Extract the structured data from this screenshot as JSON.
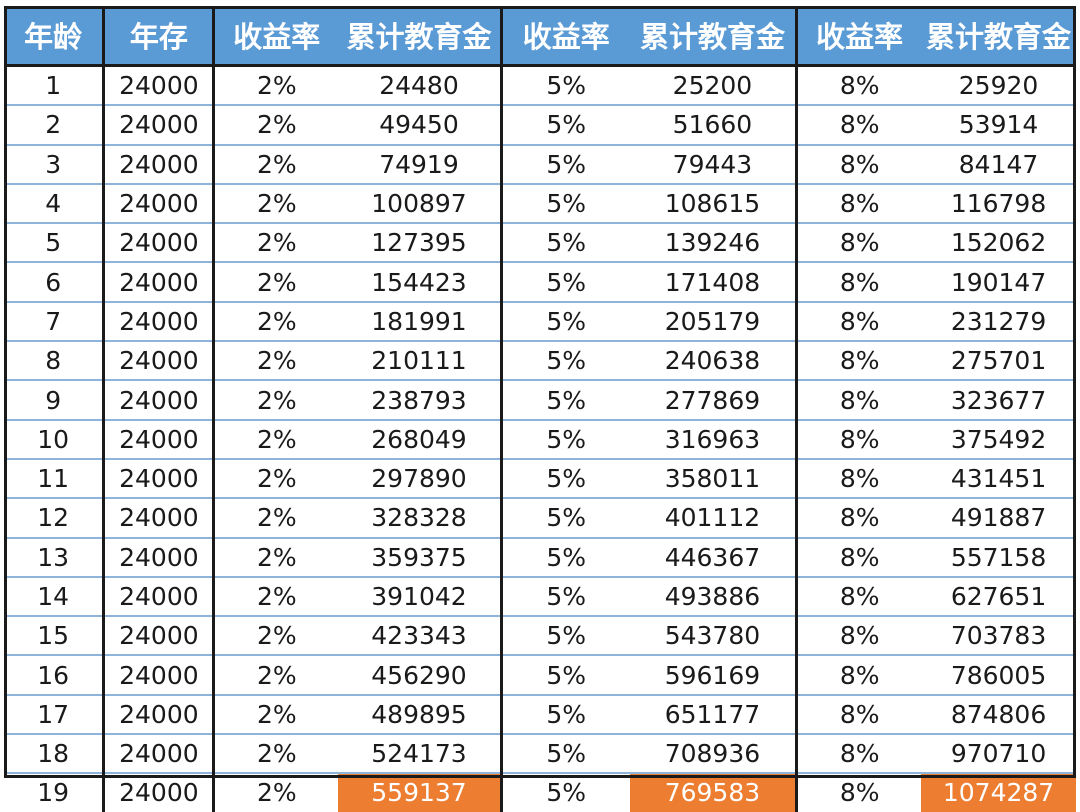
{
  "headers": [
    "年龄",
    "年存",
    "收益率",
    "累计教育金",
    "收益率",
    "累计教育金",
    "收益率",
    "累计教育金"
  ],
  "rows": [
    [
      "1",
      "24000",
      "2%",
      "24480",
      "5%",
      "25200",
      "8%",
      "25920"
    ],
    [
      "2",
      "24000",
      "2%",
      "49450",
      "5%",
      "51660",
      "8%",
      "53914"
    ],
    [
      "3",
      "24000",
      "2%",
      "74919",
      "5%",
      "79443",
      "8%",
      "84147"
    ],
    [
      "4",
      "24000",
      "2%",
      "100897",
      "5%",
      "108615",
      "8%",
      "116798"
    ],
    [
      "5",
      "24000",
      "2%",
      "127395",
      "5%",
      "139246",
      "8%",
      "152062"
    ],
    [
      "6",
      "24000",
      "2%",
      "154423",
      "5%",
      "171408",
      "8%",
      "190147"
    ],
    [
      "7",
      "24000",
      "2%",
      "181991",
      "5%",
      "205179",
      "8%",
      "231279"
    ],
    [
      "8",
      "24000",
      "2%",
      "210111",
      "5%",
      "240638",
      "8%",
      "275701"
    ],
    [
      "9",
      "24000",
      "2%",
      "238793",
      "5%",
      "277869",
      "8%",
      "323677"
    ],
    [
      "10",
      "24000",
      "2%",
      "268049",
      "5%",
      "316963",
      "8%",
      "375492"
    ],
    [
      "11",
      "24000",
      "2%",
      "297890",
      "5%",
      "358011",
      "8%",
      "431451"
    ],
    [
      "12",
      "24000",
      "2%",
      "328328",
      "5%",
      "401112",
      "8%",
      "491887"
    ],
    [
      "13",
      "24000",
      "2%",
      "359375",
      "5%",
      "446367",
      "8%",
      "557158"
    ],
    [
      "14",
      "24000",
      "2%",
      "391042",
      "5%",
      "493886",
      "8%",
      "627651"
    ],
    [
      "15",
      "24000",
      "2%",
      "423343",
      "5%",
      "543780",
      "8%",
      "703783"
    ],
    [
      "16",
      "24000",
      "2%",
      "456290",
      "5%",
      "596169",
      "8%",
      "786005"
    ],
    [
      "17",
      "24000",
      "2%",
      "489895",
      "5%",
      "651177",
      "8%",
      "874806"
    ],
    [
      "18",
      "24000",
      "2%",
      "524173",
      "5%",
      "708936",
      "8%",
      "970710"
    ],
    [
      "19",
      "24000",
      "2%",
      "559137",
      "5%",
      "769583",
      "8%",
      "1074287"
    ]
  ],
  "highlight_row": 18,
  "highlight_columns": [
    3,
    5,
    7
  ],
  "colors": {
    "header_bg": "#5b9bd5",
    "header_text": "#ffffff",
    "highlight_bg": "#ed7d31",
    "highlight_text": "#ffffff",
    "row_divider": "#8fb4dc",
    "group_border": "#1a1a1a"
  }
}
